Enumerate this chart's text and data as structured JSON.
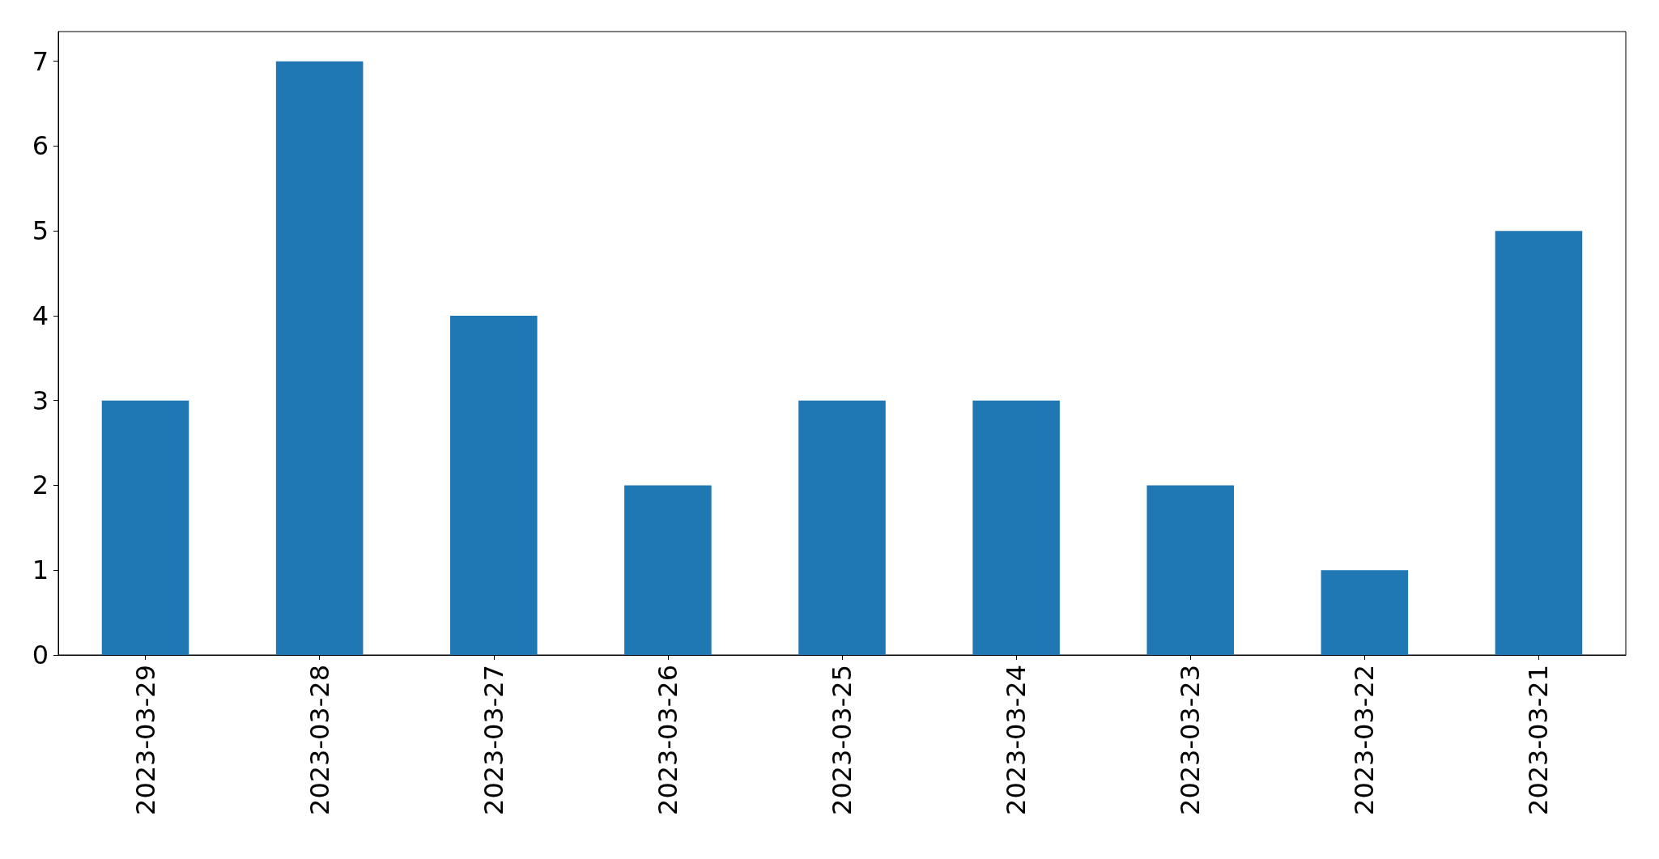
{
  "chart_data": {
    "type": "bar",
    "categories": [
      "2023-03-29",
      "2023-03-28",
      "2023-03-27",
      "2023-03-26",
      "2023-03-25",
      "2023-03-24",
      "2023-03-23",
      "2023-03-22",
      "2023-03-21"
    ],
    "values": [
      3,
      7,
      4,
      2,
      3,
      3,
      2,
      1,
      5
    ],
    "color": "#1f77b4",
    "ylim": [
      0,
      7.35
    ],
    "yticks": [
      0,
      1,
      2,
      3,
      4,
      5,
      6,
      7
    ],
    "grid": false
  }
}
